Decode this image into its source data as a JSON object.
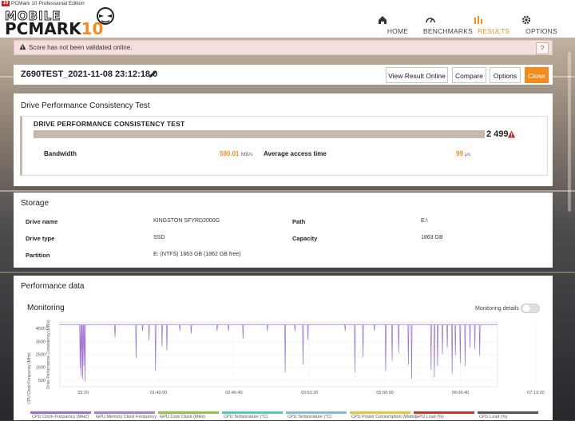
{
  "titlebar": {
    "badge": "10",
    "text": "PCMark 10 Professional Edition"
  },
  "logo": {
    "top": "MOBILE",
    "bottom_main": "PCMARK",
    "bottom_num": "10"
  },
  "nav": [
    {
      "label": "HOME",
      "icon": "home-icon"
    },
    {
      "label": "BENCHMARKS",
      "icon": "gauge-icon"
    },
    {
      "label": "RESULTS",
      "icon": "bar-chart-icon"
    },
    {
      "label": "OPTIONS",
      "icon": "gear-icon"
    }
  ],
  "nav_active": "RESULTS",
  "warning": {
    "text": "Score has not been validated online.",
    "help": "?"
  },
  "result": {
    "title": "Z690TEST_2021-11-08 23:12:18.0",
    "buttons": {
      "view_online": "View Result Online",
      "compare": "Compare",
      "options": "Options",
      "close": "Close"
    }
  },
  "test": {
    "section_title": "Drive Performance Consistency Test",
    "panel_title": "DRIVE PERFORMANCE CONSISTENCY TEST",
    "score": "2 499",
    "bandwidth_label": "Bandwidth",
    "bandwidth_value": "590.01",
    "bandwidth_unit": "MB/s",
    "access_label": "Average access time",
    "access_value": "99",
    "access_unit": "μs"
  },
  "storage": {
    "title": "Storage",
    "drive_name_label": "Drive name",
    "drive_name_value": "KINGSTON SFYRD2000G",
    "path_label": "Path",
    "path_value": "E:\\",
    "drive_type_label": "Drive type",
    "drive_type_value": "SSD",
    "capacity_label": "Capacity",
    "capacity_value": "1863 GB",
    "partition_label": "Partition",
    "partition_value": "E: (NTFS) 1863 GB (1862 GB free)"
  },
  "performance": {
    "title": "Performance data",
    "monitoring_title": "Monitoring",
    "monitoring_details": "Monitoring details"
  },
  "chart_data": {
    "type": "line",
    "ylabel_left": "CPU Clock Frequency (MHz)",
    "ylabel_right": "Drive Performance Consistency (MB/s)",
    "y_ticks": [
      "4500",
      "3500",
      "2500",
      "1500",
      "500"
    ],
    "x_ticks": [
      "33:20",
      "01:40:00",
      "02:46:40",
      "03:53:20",
      "05:00:00",
      "06:06:40",
      "07:13:20"
    ],
    "ylim": [
      0,
      5000
    ],
    "xlim_seconds": [
      0,
      27000
    ],
    "series": [
      {
        "name": "CPU Clock Frequency (MHz)",
        "color": "#9b6fce",
        "baseline": 4800,
        "dips": [
          [
            1250,
            1400
          ],
          [
            1320,
            800
          ],
          [
            1400,
            600
          ],
          [
            1480,
            1600
          ],
          [
            1550,
            400
          ],
          [
            3400,
            3800
          ],
          [
            4700,
            2200
          ],
          [
            5100,
            4300
          ],
          [
            5500,
            3600
          ],
          [
            5900,
            1200
          ],
          [
            6300,
            3100
          ],
          [
            6600,
            2800
          ],
          [
            7400,
            4300
          ],
          [
            8100,
            4100
          ],
          [
            9700,
            4300
          ],
          [
            10400,
            4300
          ],
          [
            11300,
            3700
          ],
          [
            12800,
            4300
          ],
          [
            13900,
            1100
          ],
          [
            14500,
            4300
          ],
          [
            15000,
            1700
          ],
          [
            15300,
            3600
          ],
          [
            17600,
            4300
          ],
          [
            18200,
            1100
          ],
          [
            18700,
            2300
          ],
          [
            19400,
            4300
          ],
          [
            20100,
            1200
          ],
          [
            20500,
            2000
          ],
          [
            20900,
            2600
          ],
          [
            21500,
            1700
          ],
          [
            21700,
            600
          ],
          [
            22900,
            1300
          ],
          [
            23100,
            700
          ],
          [
            23300,
            1600
          ],
          [
            23600,
            2500
          ],
          [
            23900,
            3000
          ],
          [
            24200,
            1000
          ],
          [
            24400,
            2400
          ],
          [
            24700,
            1800
          ],
          [
            25000,
            1600
          ],
          [
            25300,
            3000
          ],
          [
            25600,
            2900
          ],
          [
            25900,
            2400
          ]
        ]
      }
    ],
    "legend": [
      {
        "label": "CPU Clock Frequency (MHz)",
        "color": "#9b6fce"
      },
      {
        "label": "GPU Memory Clock Frequency",
        "color": "#a57fd6"
      },
      {
        "label": "GPU Core Clock (MHz)",
        "color": "#8fc34d"
      },
      {
        "label": "CPU Temperature (°C)",
        "color": "#4ec9c4"
      },
      {
        "label": "CPU Temperature (°C)",
        "color": "#86b8e0"
      },
      {
        "label": "CPU Power Consumption (Watts)",
        "color": "#e6c440"
      },
      {
        "label": "GPU Load (%)",
        "color": "#c0392b"
      },
      {
        "label": "CPU Load (%)",
        "color": "#555555"
      }
    ]
  }
}
